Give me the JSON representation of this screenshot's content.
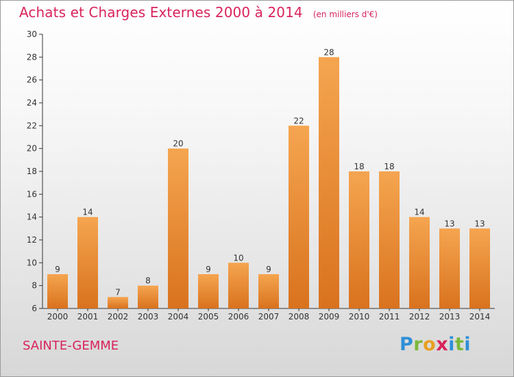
{
  "header": {
    "title": "Achats et Charges Externes 2000 à 2014",
    "unit": "(en milliers d'€)"
  },
  "footer": {
    "commune": "SAINTE-GEMME",
    "logo": {
      "p": "P",
      "r": "r",
      "o": "o",
      "x": "x",
      "i": "i",
      "t": "t",
      "i2": "i"
    }
  },
  "colors": {
    "title": "#d8235b",
    "bar_top": "#f5a550",
    "bar_bottom": "#d9721e",
    "axis": "#333333"
  },
  "chart_data": {
    "type": "bar",
    "title": "Achats et Charges Externes 2000 à 2014",
    "unit": "(en milliers d'€)",
    "categories": [
      "2000",
      "2001",
      "2002",
      "2003",
      "2004",
      "2005",
      "2006",
      "2007",
      "2008",
      "2009",
      "2010",
      "2011",
      "2012",
      "2013",
      "2014"
    ],
    "values": [
      9,
      14,
      7,
      8,
      20,
      9,
      10,
      9,
      22,
      28,
      18,
      18,
      14,
      13,
      13
    ],
    "ylim": [
      6,
      30
    ],
    "yticks": [
      6,
      8,
      10,
      12,
      14,
      16,
      18,
      20,
      22,
      24,
      26,
      28,
      30
    ],
    "grid": false,
    "legend": "none"
  }
}
